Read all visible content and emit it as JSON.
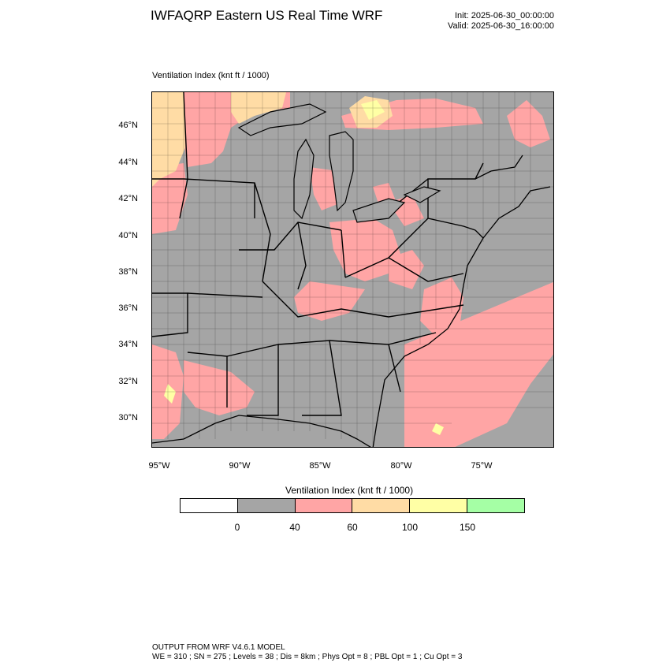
{
  "header": {
    "title": "IWFAQRP Eastern US Real Time WRF",
    "init": "Init: 2025-06-30_00:00:00",
    "valid": "Valid: 2025-06-30_16:00:00"
  },
  "map": {
    "variable_label": "Ventilation Index   (knt ft / 1000)",
    "lat_labels": [
      "46°N",
      "44°N",
      "42°N",
      "40°N",
      "38°N",
      "36°N",
      "34°N",
      "32°N",
      "30°N"
    ],
    "lon_labels": [
      "95°W",
      "90°W",
      "85°W",
      "80°W",
      "75°W"
    ],
    "colors": {
      "land_low": "#a5a5a5",
      "pink": "#ffa5a5",
      "orange": "#ffdca5",
      "yellow": "#ffffa5",
      "green": "#a5ffa5"
    }
  },
  "colorbar": {
    "title": "Ventilation Index  (knt ft / 1000)",
    "colors": [
      "#ffffff",
      "#a5a5a5",
      "#ffa5a5",
      "#ffdca5",
      "#ffffa5",
      "#a5ffa5"
    ],
    "labels": [
      "0",
      "40",
      "60",
      "100",
      "150"
    ]
  },
  "footer": {
    "line1": "OUTPUT FROM WRF V4.6.1 MODEL",
    "line2": "WE = 310 ; SN = 275 ; Levels = 38 ; Dis = 8km ; Phys Opt = 8 ; PBL Opt = 1 ; Cu Opt = 3"
  }
}
